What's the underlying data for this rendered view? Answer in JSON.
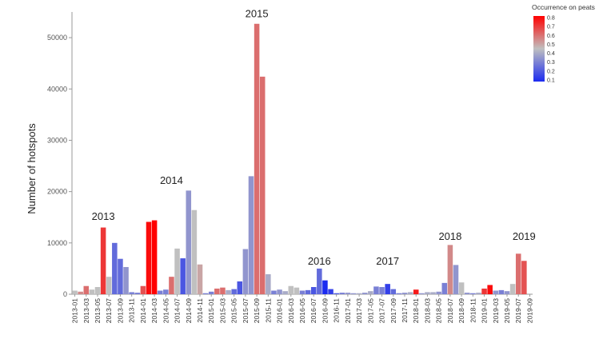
{
  "chart_data": {
    "type": "bar",
    "ylabel": "Number of hotspots",
    "xlabel": "",
    "ylim": [
      0,
      55000
    ],
    "yticks": [
      0,
      10000,
      20000,
      30000,
      40000,
      50000
    ],
    "categories": [
      "2013-01",
      "2013-02",
      "2013-03",
      "2013-04",
      "2013-05",
      "2013-06",
      "2013-07",
      "2013-08",
      "2013-09",
      "2013-10",
      "2013-11",
      "2013-12",
      "2014-01",
      "2014-02",
      "2014-03",
      "2014-04",
      "2014-05",
      "2014-06",
      "2014-07",
      "2014-08",
      "2014-09",
      "2014-10",
      "2014-11",
      "2014-12",
      "2015-01",
      "2015-02",
      "2015-03",
      "2015-04",
      "2015-05",
      "2015-06",
      "2015-07",
      "2015-08",
      "2015-09",
      "2015-10",
      "2015-11",
      "2015-12",
      "2016-01",
      "2016-02",
      "2016-03",
      "2016-04",
      "2016-05",
      "2016-06",
      "2016-07",
      "2016-08",
      "2016-09",
      "2016-10",
      "2016-11",
      "2016-12",
      "2017-01",
      "2017-02",
      "2017-03",
      "2017-04",
      "2017-05",
      "2017-06",
      "2017-07",
      "2017-08",
      "2017-09",
      "2017-10",
      "2017-11",
      "2017-12",
      "2018-01",
      "2018-02",
      "2018-03",
      "2018-04",
      "2018-05",
      "2018-06",
      "2018-07",
      "2018-08",
      "2018-09",
      "2018-10",
      "2018-11",
      "2018-12",
      "2019-01",
      "2019-02",
      "2019-03",
      "2019-04",
      "2019-05",
      "2019-06",
      "2019-07",
      "2019-08",
      "2019-09"
    ],
    "xtick_labels": [
      "2013-01",
      "2013-03",
      "2013-05",
      "2013-07",
      "2013-09",
      "2013-11",
      "2014-01",
      "2014-03",
      "2014-05",
      "2014-07",
      "2014-09",
      "2014-11",
      "2015-01",
      "2015-03",
      "2015-05",
      "2015-07",
      "2015-09",
      "2015-11",
      "2016-01",
      "2016-03",
      "2016-05",
      "2016-07",
      "2016-09",
      "2016-11",
      "2017-01",
      "2017-03",
      "2017-05",
      "2017-07",
      "2017-09",
      "2017-11",
      "2018-01",
      "2018-03",
      "2018-05",
      "2018-07",
      "2018-09",
      "2018-11",
      "2019-01",
      "2019-03",
      "2019-05",
      "2019-07",
      "2019-09"
    ],
    "values": [
      700,
      500,
      1600,
      900,
      1400,
      13000,
      3400,
      10000,
      6900,
      5300,
      400,
      300,
      1600,
      14100,
      14400,
      700,
      900,
      3400,
      8900,
      7000,
      20200,
      16400,
      5800,
      200,
      500,
      1100,
      1300,
      800,
      1000,
      2500,
      8800,
      23000,
      52700,
      42400,
      3900,
      700,
      900,
      600,
      1600,
      1300,
      700,
      800,
      1400,
      5000,
      2700,
      1000,
      200,
      300,
      300,
      200,
      200,
      300,
      600,
      1500,
      1400,
      2000,
      1000,
      200,
      300,
      400,
      900,
      200,
      400,
      400,
      500,
      2200,
      9600,
      5700,
      2300,
      300,
      200,
      300,
      1100,
      1800,
      700,
      800,
      600,
      2000,
      7900,
      6500,
      0
    ],
    "peat_fraction": [
      0.45,
      0.55,
      0.6,
      0.45,
      0.45,
      0.7,
      0.45,
      0.25,
      0.25,
      0.35,
      0.3,
      0.3,
      0.65,
      0.78,
      0.8,
      0.3,
      0.3,
      0.6,
      0.45,
      0.2,
      0.35,
      0.45,
      0.5,
      0.3,
      0.3,
      0.6,
      0.6,
      0.4,
      0.25,
      0.2,
      0.35,
      0.35,
      0.6,
      0.6,
      0.4,
      0.3,
      0.35,
      0.4,
      0.45,
      0.45,
      0.3,
      0.25,
      0.2,
      0.25,
      0.1,
      0.15,
      0.2,
      0.3,
      0.35,
      0.35,
      0.4,
      0.35,
      0.4,
      0.3,
      0.3,
      0.15,
      0.25,
      0.3,
      0.35,
      0.4,
      0.75,
      0.35,
      0.4,
      0.4,
      0.35,
      0.3,
      0.55,
      0.35,
      0.45,
      0.35,
      0.3,
      0.4,
      0.7,
      0.78,
      0.35,
      0.3,
      0.35,
      0.45,
      0.6,
      0.65,
      0
    ],
    "colorbar": {
      "title": "Occurrence on peats",
      "ticks": [
        "0.8",
        "0.7",
        "0.6",
        "0.5",
        "0.4",
        "0.3",
        "0.2",
        "0.1"
      ],
      "colors": {
        "low": "#1c2bf0",
        "mid": "#c0c0c0",
        "high": "#ff0000"
      }
    },
    "annotations": [
      {
        "text": "2013",
        "x": "2013-06",
        "y": 14500
      },
      {
        "text": "2014",
        "x": "2014-06",
        "y": 21500
      },
      {
        "text": "2015",
        "x": "2015-09",
        "y": 54000
      },
      {
        "text": "2016",
        "x": "2016-08",
        "y": 5800
      },
      {
        "text": "2017",
        "x": "2017-08",
        "y": 5800
      },
      {
        "text": "2018",
        "x": "2018-07",
        "y": 10600
      },
      {
        "text": "2019",
        "x": "2019-08",
        "y": 10600
      }
    ],
    "grid": false
  }
}
